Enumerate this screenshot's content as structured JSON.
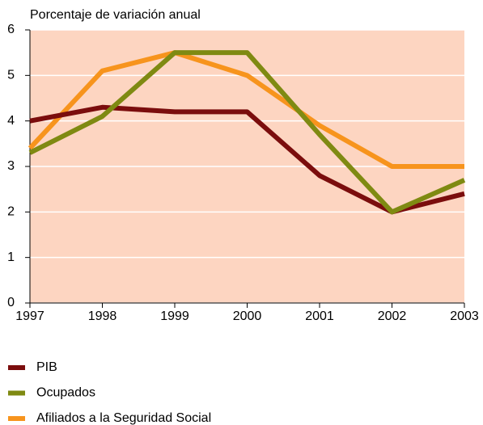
{
  "chart_data": {
    "type": "line",
    "y_label": "Porcentaje de variación anual",
    "categories": [
      "1997",
      "1998",
      "1999",
      "2000",
      "2001",
      "2002",
      "2003"
    ],
    "series": [
      {
        "name": "PIB",
        "color": "#7b0d0d",
        "values": [
          4.0,
          4.3,
          4.2,
          4.2,
          2.8,
          2.0,
          2.4
        ]
      },
      {
        "name": "Ocupados",
        "color": "#7f8a12",
        "values": [
          3.3,
          4.1,
          5.5,
          5.5,
          3.7,
          2.0,
          2.7
        ]
      },
      {
        "name": "Afiliados a la Seguridad Social",
        "color": "#f7941d",
        "values": [
          3.4,
          5.1,
          5.5,
          5.0,
          3.9,
          3.0,
          3.0
        ]
      }
    ],
    "ylim": [
      0,
      6
    ],
    "yticks": [
      0,
      1,
      2,
      3,
      4,
      5,
      6
    ],
    "grid": true,
    "plot_background": "#fdd5c1"
  }
}
